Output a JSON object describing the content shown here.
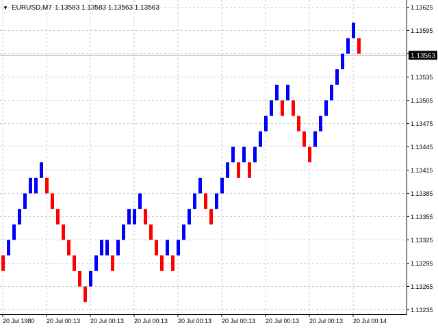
{
  "header": {
    "arrow": "▼",
    "symbol": "EURUSD,M7",
    "ohlc": "1.13583 1.13583 1.13563 1.13563"
  },
  "price_tag": "1.13563",
  "colors": {
    "bull": "#0000ff",
    "bear": "#ff0000",
    "grid": "#c8c8c8",
    "axis": "#000000",
    "tag_bg": "#000000",
    "tag_fg": "#ffffff"
  },
  "chart_data": {
    "type": "bar",
    "title": "",
    "y_ticks": [
      "1.13625",
      "1.13595",
      "1.13565",
      "1.13535",
      "1.13505",
      "1.13475",
      "1.13445",
      "1.13415",
      "1.13385",
      "1.13355",
      "1.13325",
      "1.13295",
      "1.13265",
      "1.13235"
    ],
    "x_ticks": [
      "20 Jul 1980",
      "20 Jul 00:13",
      "20 Jul 00:13",
      "20 Jul 00:13",
      "20 Jul 00:13",
      "20 Jul 00:13",
      "20 Jul 00:13",
      "20 Jul 00:13",
      "20 Jul 00:14"
    ],
    "ylim": [
      1.13235,
      1.13625
    ],
    "current_price": 1.13563,
    "grid": true,
    "bricks": [
      {
        "dir": "down",
        "low": 1.13285,
        "high": 1.13305
      },
      {
        "dir": "up",
        "low": 1.13305,
        "high": 1.13325
      },
      {
        "dir": "up",
        "low": 1.13325,
        "high": 1.13345
      },
      {
        "dir": "up",
        "low": 1.13345,
        "high": 1.13365
      },
      {
        "dir": "up",
        "low": 1.13365,
        "high": 1.13385
      },
      {
        "dir": "up",
        "low": 1.13385,
        "high": 1.13405
      },
      {
        "dir": "up",
        "low": 1.13385,
        "high": 1.13405
      },
      {
        "dir": "up",
        "low": 1.13405,
        "high": 1.13425
      },
      {
        "dir": "down",
        "low": 1.13385,
        "high": 1.13405
      },
      {
        "dir": "down",
        "low": 1.13365,
        "high": 1.13385
      },
      {
        "dir": "down",
        "low": 1.13345,
        "high": 1.13365
      },
      {
        "dir": "down",
        "low": 1.13325,
        "high": 1.13345
      },
      {
        "dir": "down",
        "low": 1.13305,
        "high": 1.13325
      },
      {
        "dir": "down",
        "low": 1.13285,
        "high": 1.13305
      },
      {
        "dir": "down",
        "low": 1.13265,
        "high": 1.13285
      },
      {
        "dir": "down",
        "low": 1.13245,
        "high": 1.13265
      },
      {
        "dir": "up",
        "low": 1.13265,
        "high": 1.13285
      },
      {
        "dir": "up",
        "low": 1.13285,
        "high": 1.13305
      },
      {
        "dir": "up",
        "low": 1.13305,
        "high": 1.13325
      },
      {
        "dir": "up",
        "low": 1.13305,
        "high": 1.13325
      },
      {
        "dir": "down",
        "low": 1.13285,
        "high": 1.13305
      },
      {
        "dir": "up",
        "low": 1.13305,
        "high": 1.13325
      },
      {
        "dir": "up",
        "low": 1.13325,
        "high": 1.13345
      },
      {
        "dir": "up",
        "low": 1.13345,
        "high": 1.13365
      },
      {
        "dir": "up",
        "low": 1.13345,
        "high": 1.13365
      },
      {
        "dir": "up",
        "low": 1.13365,
        "high": 1.13385
      },
      {
        "dir": "down",
        "low": 1.13345,
        "high": 1.13365
      },
      {
        "dir": "down",
        "low": 1.13325,
        "high": 1.13345
      },
      {
        "dir": "down",
        "low": 1.13305,
        "high": 1.13325
      },
      {
        "dir": "down",
        "low": 1.13285,
        "high": 1.13305
      },
      {
        "dir": "up",
        "low": 1.13305,
        "high": 1.13325
      },
      {
        "dir": "down",
        "low": 1.13285,
        "high": 1.13305
      },
      {
        "dir": "up",
        "low": 1.13305,
        "high": 1.13325
      },
      {
        "dir": "up",
        "low": 1.13325,
        "high": 1.13345
      },
      {
        "dir": "up",
        "low": 1.13345,
        "high": 1.13365
      },
      {
        "dir": "up",
        "low": 1.13365,
        "high": 1.13385
      },
      {
        "dir": "up",
        "low": 1.13385,
        "high": 1.13405
      },
      {
        "dir": "down",
        "low": 1.13365,
        "high": 1.13385
      },
      {
        "dir": "down",
        "low": 1.13345,
        "high": 1.13365
      },
      {
        "dir": "up",
        "low": 1.13365,
        "high": 1.13385
      },
      {
        "dir": "up",
        "low": 1.13385,
        "high": 1.13405
      },
      {
        "dir": "up",
        "low": 1.13405,
        "high": 1.13425
      },
      {
        "dir": "up",
        "low": 1.13425,
        "high": 1.13445
      },
      {
        "dir": "down",
        "low": 1.13405,
        "high": 1.13425
      },
      {
        "dir": "up",
        "low": 1.13425,
        "high": 1.13445
      },
      {
        "dir": "down",
        "low": 1.13405,
        "high": 1.13425
      },
      {
        "dir": "up",
        "low": 1.13425,
        "high": 1.13445
      },
      {
        "dir": "up",
        "low": 1.13445,
        "high": 1.13465
      },
      {
        "dir": "up",
        "low": 1.13465,
        "high": 1.13485
      },
      {
        "dir": "up",
        "low": 1.13485,
        "high": 1.13505
      },
      {
        "dir": "up",
        "low": 1.13505,
        "high": 1.13525
      },
      {
        "dir": "down",
        "low": 1.13485,
        "high": 1.13505
      },
      {
        "dir": "up",
        "low": 1.13505,
        "high": 1.13525
      },
      {
        "dir": "down",
        "low": 1.13485,
        "high": 1.13505
      },
      {
        "dir": "down",
        "low": 1.13465,
        "high": 1.13485
      },
      {
        "dir": "down",
        "low": 1.13445,
        "high": 1.13465
      },
      {
        "dir": "down",
        "low": 1.13425,
        "high": 1.13445
      },
      {
        "dir": "up",
        "low": 1.13445,
        "high": 1.13465
      },
      {
        "dir": "up",
        "low": 1.13465,
        "high": 1.13485
      },
      {
        "dir": "up",
        "low": 1.13485,
        "high": 1.13505
      },
      {
        "dir": "up",
        "low": 1.13505,
        "high": 1.13525
      },
      {
        "dir": "up",
        "low": 1.13525,
        "high": 1.13545
      },
      {
        "dir": "up",
        "low": 1.13545,
        "high": 1.13565
      },
      {
        "dir": "up",
        "low": 1.13565,
        "high": 1.13585
      },
      {
        "dir": "up",
        "low": 1.13585,
        "high": 1.13605
      },
      {
        "dir": "down",
        "low": 1.13565,
        "high": 1.13585
      }
    ]
  }
}
